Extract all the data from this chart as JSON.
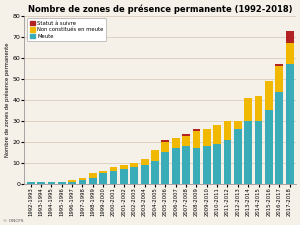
{
  "title": "Nombre de zones de présence permanente (1992-2018)",
  "ylabel": "Nombre de zones de présence permanente",
  "source": "© ONCFS",
  "categories": [
    "1992-1993",
    "1993-1994",
    "1994-1995",
    "1995-1996",
    "1996-1997",
    "1997-1998",
    "1998-1999",
    "1999-2000",
    "2000-2001",
    "2001-2002",
    "2002-2003",
    "2003-2004",
    "2004-2005",
    "2005-2006",
    "2006-2007",
    "2007-2008",
    "2008-2009",
    "2009-2010",
    "2010-2011",
    "2011-2012",
    "2012-2013",
    "2013-2014",
    "2014-2015",
    "2015-2016",
    "2016-2017",
    "2017-2018"
  ],
  "meute": [
    1,
    1,
    1,
    1,
    1,
    2,
    3,
    5,
    6,
    7,
    8,
    9,
    11,
    15,
    17,
    18,
    17,
    18,
    19,
    21,
    26,
    30,
    30,
    35,
    44,
    57
  ],
  "non_constitues": [
    0,
    0,
    0,
    0,
    1,
    1,
    2,
    1,
    2,
    2,
    2,
    3,
    5,
    5,
    5,
    5,
    8,
    8,
    9,
    9,
    4,
    11,
    12,
    14,
    12,
    10
  ],
  "statut": [
    0,
    0,
    0,
    0,
    0,
    0,
    0,
    0,
    0,
    0,
    0,
    0,
    0,
    1,
    0,
    1,
    1,
    0,
    0,
    0,
    0,
    0,
    0,
    0,
    1,
    6
  ],
  "color_meute": "#3aacb8",
  "color_non_constitues": "#f0b800",
  "color_statut": "#b22222",
  "bg_color": "#f5f0e8",
  "ylim": [
    0,
    80
  ],
  "yticks": [
    0,
    10,
    20,
    30,
    40,
    50,
    60,
    70,
    80
  ],
  "legend_labels": [
    "Statut à suivre",
    "Non constitués en meute",
    "Meute"
  ],
  "legend_colors": [
    "#b22222",
    "#f0b800",
    "#3aacb8"
  ],
  "figsize": [
    3.0,
    2.25
  ],
  "dpi": 100
}
